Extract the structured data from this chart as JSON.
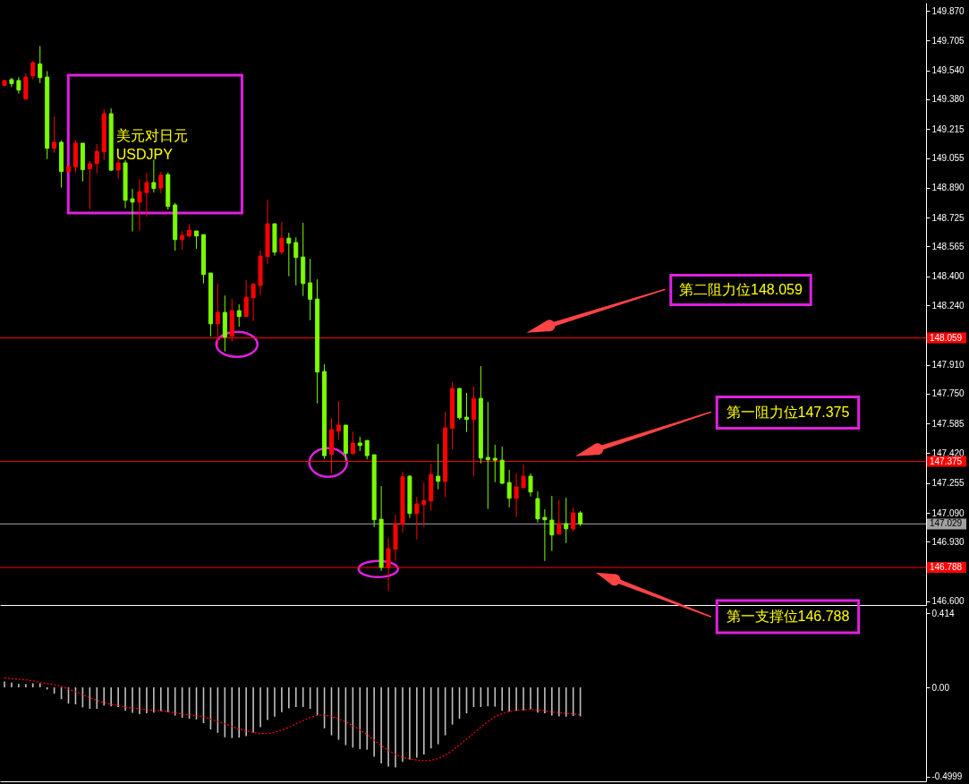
{
  "chart_data": [
    {
      "type": "candlestick",
      "categories": [
        null,
        null,
        null,
        null,
        null,
        null,
        null,
        null,
        null,
        null,
        null,
        null,
        null,
        null,
        null,
        null,
        null,
        null,
        null,
        null,
        null,
        null,
        null,
        null,
        null,
        null,
        null,
        null,
        null,
        null,
        null,
        null,
        null,
        null,
        null,
        null,
        null,
        null,
        null,
        null,
        null,
        null,
        null,
        null,
        null,
        null,
        null,
        null,
        null,
        null,
        null,
        null,
        null,
        null,
        null,
        null,
        null,
        null,
        null,
        null,
        null,
        null,
        null,
        null,
        null,
        null,
        null,
        null,
        null,
        null,
        null,
        null,
        null,
        null,
        null,
        null,
        null,
        null,
        null,
        null,
        null,
        null,
        null,
        null,
        null,
        null,
        null,
        null,
        null,
        null,
        null,
        null,
        null,
        null,
        null,
        null,
        null,
        null,
        null,
        null,
        null,
        null,
        null,
        null,
        null,
        null,
        null,
        null,
        null,
        null,
        null,
        null,
        null,
        null,
        null,
        null,
        null,
        null,
        null,
        null,
        null,
        null,
        null,
        null,
        null,
        null,
        null,
        null,
        null,
        null
      ],
      "ohlc": [
        [
          149.457,
          149.487,
          149.451,
          149.484
        ],
        [
          149.489,
          149.5,
          149.447,
          149.467
        ],
        [
          149.484,
          149.503,
          149.411,
          149.431
        ],
        [
          149.381,
          149.523,
          149.381,
          149.503
        ],
        [
          149.51,
          149.593,
          149.49,
          149.583
        ],
        [
          149.576,
          149.675,
          149.47,
          149.5
        ],
        [
          149.503,
          149.536,
          149.049,
          149.109
        ],
        [
          149.109,
          149.285,
          149.084,
          149.142
        ],
        [
          149.142,
          149.153,
          148.891,
          148.98
        ],
        [
          148.98,
          149.011,
          148.978,
          149.008
        ],
        [
          149.005,
          149.153,
          148.975,
          149.137
        ],
        [
          149.137,
          149.137,
          148.925,
          148.99
        ],
        [
          148.995,
          149.038,
          148.772,
          149.023
        ],
        [
          149.024,
          149.132,
          148.97,
          149.092
        ],
        [
          149.089,
          149.325,
          149.044,
          149.3
        ],
        [
          149.3,
          149.33,
          148.983,
          148.988
        ],
        [
          148.988,
          149.049,
          148.94,
          149.028
        ],
        [
          149.028,
          149.044,
          148.777,
          148.821
        ],
        [
          148.829,
          148.884,
          148.648,
          148.811
        ],
        [
          148.811,
          148.938,
          148.653,
          148.869
        ],
        [
          148.864,
          148.973,
          148.732,
          148.919
        ],
        [
          148.919,
          149.046,
          148.864,
          148.886
        ],
        [
          148.889,
          148.978,
          148.859,
          148.96
        ],
        [
          148.963,
          148.975,
          148.77,
          148.787
        ],
        [
          148.795,
          148.806,
          148.542,
          148.603
        ],
        [
          148.603,
          148.651,
          148.549,
          148.626
        ],
        [
          148.623,
          148.691,
          148.615,
          148.656
        ],
        [
          148.651,
          148.651,
          148.552,
          148.623
        ],
        [
          148.631,
          148.631,
          148.36,
          148.41
        ],
        [
          148.418,
          148.418,
          148.068,
          148.137
        ],
        [
          148.137,
          148.359,
          148.018,
          148.2
        ],
        [
          148.2,
          148.294,
          147.984,
          148.063
        ],
        [
          148.068,
          148.274,
          148.038,
          148.21
        ],
        [
          148.21,
          148.245,
          148.121,
          148.177
        ],
        [
          148.177,
          148.378,
          148.177,
          148.284
        ],
        [
          148.281,
          148.364,
          148.152,
          148.355
        ],
        [
          148.349,
          148.542,
          148.296,
          148.512
        ],
        [
          148.509,
          148.824,
          148.469,
          148.691
        ],
        [
          148.691,
          148.691,
          148.514,
          148.534
        ],
        [
          148.534,
          148.7,
          148.519,
          148.611
        ],
        [
          148.611,
          148.641,
          148.4,
          148.583
        ],
        [
          148.587,
          148.616,
          148.35,
          148.504
        ],
        [
          148.507,
          148.696,
          148.291,
          148.36
        ],
        [
          148.364,
          148.497,
          148.157,
          148.273
        ],
        [
          148.274,
          148.383,
          147.696,
          147.87
        ],
        [
          147.873,
          147.913,
          147.389,
          147.407
        ],
        [
          147.414,
          147.615,
          147.311,
          147.551
        ],
        [
          147.543,
          147.709,
          147.496,
          147.576
        ],
        [
          147.576,
          147.576,
          147.382,
          147.419
        ],
        [
          147.419,
          147.541,
          147.414,
          147.477
        ],
        [
          147.477,
          147.511,
          147.432,
          147.463
        ],
        [
          147.491,
          147.491,
          147.387,
          147.407
        ],
        [
          147.412,
          147.412,
          147.011,
          147.052
        ],
        [
          147.055,
          147.239,
          146.768,
          146.788
        ],
        [
          146.788,
          146.951,
          146.659,
          146.892
        ],
        [
          146.889,
          147.08,
          146.824,
          147.031
        ],
        [
          147.026,
          147.318,
          146.981,
          147.29
        ],
        [
          147.293,
          147.298,
          147.062,
          147.087
        ],
        [
          147.087,
          147.179,
          146.943,
          147.14
        ],
        [
          147.136,
          147.258,
          147.012,
          147.159
        ],
        [
          147.156,
          147.363,
          147.102,
          147.303
        ],
        [
          147.293,
          147.472,
          147.221,
          147.265
        ],
        [
          147.264,
          147.65,
          147.176,
          147.561
        ],
        [
          147.558,
          147.814,
          147.442,
          147.779
        ],
        [
          147.779,
          147.779,
          147.607,
          147.617
        ],
        [
          147.62,
          147.754,
          147.538,
          147.607
        ],
        [
          147.607,
          147.789,
          147.293,
          147.724
        ],
        [
          147.724,
          147.903,
          147.364,
          147.394
        ],
        [
          147.397,
          147.705,
          147.112,
          147.384
        ],
        [
          147.392,
          147.467,
          147.26,
          147.382
        ],
        [
          147.382,
          147.457,
          147.25,
          147.254
        ],
        [
          147.258,
          147.328,
          147.121,
          147.171
        ],
        [
          147.171,
          147.308,
          147.067,
          147.234
        ],
        [
          147.23,
          147.358,
          147.226,
          147.293
        ],
        [
          147.293,
          147.308,
          147.181,
          147.206
        ],
        [
          147.169,
          147.209,
          147.037,
          147.057
        ],
        [
          147.065,
          147.11,
          146.824,
          147.052
        ],
        [
          147.05,
          147.184,
          146.879,
          146.968
        ],
        [
          146.973,
          147.164,
          146.973,
          147.031
        ],
        [
          147.031,
          147.174,
          146.923,
          147.002
        ],
        [
          147.002,
          147.12,
          146.988,
          147.09
        ],
        [
          147.09,
          147.1,
          147.017,
          147.029
        ],
        null,
        null,
        null,
        null,
        null,
        null,
        null,
        null,
        null,
        null,
        null,
        null,
        null,
        null,
        null,
        null,
        null,
        null,
        null,
        null,
        null,
        null,
        null,
        null,
        null,
        null,
        null,
        null,
        null,
        null,
        null,
        null,
        null,
        null,
        null,
        null,
        null,
        null,
        null,
        null,
        null,
        null,
        null,
        null,
        null,
        null,
        null,
        null
      ],
      "colors": [
        "#ff0000",
        "#7cfc00",
        "#7cfc00",
        "#ff0000",
        "#ff0000",
        "#7cfc00",
        "#7cfc00",
        "#ff0000",
        "#7cfc00",
        "#ff0000",
        "#ff0000",
        "#7cfc00",
        "#ff0000",
        "#ff0000",
        "#ff0000",
        "#7cfc00",
        "#ff0000",
        "#7cfc00",
        "#7cfc00",
        "#ff0000",
        "#ff0000",
        "#7cfc00",
        "#ff0000",
        "#7cfc00",
        "#7cfc00",
        "#ff0000",
        "#ff0000",
        "#7cfc00",
        "#7cfc00",
        "#7cfc00",
        "#ff0000",
        "#7cfc00",
        "#ff0000",
        "#7cfc00",
        "#ff0000",
        "#ff0000",
        "#ff0000",
        "#ff0000",
        "#7cfc00",
        "#ff0000",
        "#7cfc00",
        "#7cfc00",
        "#7cfc00",
        "#7cfc00",
        "#7cfc00",
        "#7cfc00",
        "#ff0000",
        "#ff0000",
        "#7cfc00",
        "#ff0000",
        "#7cfc00",
        "#7cfc00",
        "#7cfc00",
        "#7cfc00",
        "#ff0000",
        "#ff0000",
        "#ff0000",
        "#7cfc00",
        "#ff0000",
        "#ff0000",
        "#ff0000",
        "#7cfc00",
        "#ff0000",
        "#ff0000",
        "#7cfc00",
        "#7cfc00",
        "#ff0000",
        "#7cfc00",
        "#7cfc00",
        "#7cfc00",
        "#7cfc00",
        "#7cfc00",
        "#ff0000",
        "#ff0000",
        "#7cfc00",
        "#7cfc00",
        "#7cfc00",
        "#7cfc00",
        "#ff0000",
        "#7cfc00",
        "#ff0000",
        "#7cfc00",
        null,
        null,
        null,
        null,
        null,
        null,
        null,
        null,
        null,
        null,
        null,
        null,
        null,
        null,
        null,
        null,
        null,
        null,
        null,
        null,
        null,
        null,
        null,
        null,
        null,
        null,
        null,
        null,
        null,
        null,
        null,
        null,
        null,
        null,
        null,
        null,
        null,
        null,
        null,
        null,
        null,
        null,
        null,
        null,
        null,
        null,
        null,
        null
      ],
      "ylim": [
        146.58,
        149.915
      ],
      "yticks": [
        {
          "value": 149.87,
          "label": "149.870"
        },
        149.705,
        {
          "value": 149.54,
          "label": "149.540"
        },
        {
          "value": 149.38,
          "label": "149.380"
        },
        149.215,
        149.055,
        {
          "value": 148.89,
          "label": "148.890"
        },
        148.725,
        148.565,
        {
          "value": 148.4,
          "label": "148.400"
        },
        {
          "value": 148.24,
          "label": "148.240"
        },
        {
          "value": 147.91,
          "label": "147.910"
        },
        {
          "value": 147.75,
          "label": "147.750"
        },
        147.585,
        {
          "value": 147.42,
          "label": "147.420"
        },
        147.255,
        {
          "value": 147.09,
          "label": "147.090"
        },
        {
          "value": 146.93,
          "label": "146.930"
        },
        {
          "value": 146.6,
          "label": "146.600"
        }
      ],
      "tick_labels": "y",
      "ref_lines": [
        {
          "axis": "y",
          "value": 148.059,
          "label": "148.059",
          "color": "#ff0000"
        },
        {
          "axis": "y",
          "value": 147.375,
          "label": "147.375",
          "color": "#ff0000"
        },
        {
          "axis": "y",
          "value": 147.029,
          "label": "147.029",
          "color": "#a0a0a0"
        },
        {
          "axis": "y",
          "value": 146.788,
          "label": "146.788",
          "color": "#ff0000"
        }
      ],
      "annotations": [
        "美元对日元",
        "USDJPY",
        {
          "text": "第二阻力位148.059",
          "y": 148.059
        },
        {
          "text": "第一阻力位147.375",
          "y": 147.375
        },
        {
          "text": "第一支撑位146.788",
          "y": 146.788
        }
      ]
    },
    {
      "type": "bar",
      "categories": [
        null,
        null,
        null,
        null,
        null,
        null,
        null,
        null,
        null,
        null,
        null,
        null,
        null,
        null,
        null,
        null,
        null,
        null,
        null,
        null,
        null,
        null,
        null,
        null,
        null,
        null,
        null,
        null,
        null,
        null,
        null,
        null,
        null,
        null,
        null,
        null,
        null,
        null,
        null,
        null,
        null,
        null,
        null,
        null,
        null,
        null,
        null,
        null,
        null,
        null,
        null,
        null,
        null,
        null,
        null,
        null,
        null,
        null,
        null,
        null,
        null,
        null,
        null,
        null,
        null,
        null,
        null,
        null,
        null,
        null,
        null,
        null,
        null,
        null,
        null,
        null,
        null,
        null,
        null,
        null,
        null,
        null,
        null,
        null,
        null,
        null,
        null,
        null,
        null,
        null,
        null,
        null,
        null,
        null,
        null,
        null,
        null,
        null,
        null,
        null,
        null,
        null,
        null,
        null,
        null,
        null,
        null,
        null,
        null,
        null,
        null,
        null,
        null,
        null,
        null,
        null,
        null,
        null,
        null,
        null,
        null,
        null,
        null,
        null,
        null,
        null,
        null,
        null,
        null,
        null
      ],
      "series": [
        {
          "color": "#c0c0c0",
          "values": [
            0.032,
            0.028,
            0.019,
            0.019,
            0.023,
            0.023,
            -0.012,
            -0.035,
            -0.066,
            -0.091,
            -0.095,
            -0.112,
            -0.12,
            -0.12,
            -0.102,
            -0.106,
            -0.11,
            -0.131,
            -0.143,
            -0.15,
            -0.145,
            -0.141,
            -0.133,
            -0.139,
            -0.158,
            -0.17,
            -0.175,
            -0.179,
            -0.2,
            -0.235,
            -0.254,
            -0.279,
            -0.283,
            -0.281,
            -0.273,
            -0.252,
            -0.223,
            -0.183,
            -0.164,
            -0.139,
            -0.118,
            -0.11,
            -0.11,
            -0.12,
            -0.156,
            -0.229,
            -0.268,
            -0.293,
            -0.323,
            -0.337,
            -0.345,
            -0.348,
            -0.387,
            -0.425,
            -0.443,
            -0.448,
            -0.416,
            -0.404,
            -0.393,
            -0.375,
            -0.341,
            -0.318,
            -0.268,
            -0.208,
            -0.175,
            -0.145,
            -0.11,
            -0.11,
            -0.106,
            -0.108,
            -0.131,
            -0.135,
            -0.131,
            -0.129,
            -0.123,
            -0.141,
            -0.145,
            -0.158,
            -0.162,
            -0.164,
            -0.16,
            -0.162,
            null,
            null,
            null,
            null,
            null,
            null,
            null,
            null,
            null,
            null,
            null,
            null,
            null,
            null,
            null,
            null,
            null,
            null,
            null,
            null,
            null,
            null,
            null,
            null,
            null,
            null,
            null,
            null,
            null,
            null,
            null,
            null,
            null,
            null,
            null,
            null,
            null,
            null,
            null,
            null,
            null,
            null,
            null,
            null,
            null,
            null,
            null,
            null
          ]
        },
        {
          "type": "line",
          "color": "#ff0000",
          "values": [
            0.053,
            0.048,
            0.046,
            0.042,
            0.036,
            0.027,
            0.021,
            0.015,
            0.007,
            -0.01,
            -0.025,
            -0.041,
            -0.058,
            -0.073,
            -0.085,
            -0.095,
            -0.102,
            -0.11,
            -0.116,
            -0.12,
            -0.125,
            -0.129,
            -0.131,
            -0.135,
            -0.143,
            -0.15,
            -0.154,
            -0.158,
            -0.164,
            -0.177,
            -0.191,
            -0.204,
            -0.218,
            -0.233,
            -0.243,
            -0.252,
            -0.258,
            -0.258,
            -0.252,
            -0.239,
            -0.223,
            -0.204,
            -0.185,
            -0.168,
            -0.156,
            -0.154,
            -0.162,
            -0.177,
            -0.193,
            -0.214,
            -0.237,
            -0.264,
            -0.295,
            -0.325,
            -0.352,
            -0.375,
            -0.391,
            -0.4,
            -0.406,
            -0.41,
            -0.408,
            -0.398,
            -0.379,
            -0.352,
            -0.323,
            -0.289,
            -0.256,
            -0.223,
            -0.191,
            -0.164,
            -0.148,
            -0.135,
            -0.129,
            -0.125,
            -0.123,
            -0.127,
            -0.131,
            -0.137,
            -0.141,
            -0.145,
            -0.148,
            -0.154,
            null,
            null,
            null,
            null,
            null,
            null,
            null,
            null,
            null,
            null,
            null,
            null,
            null,
            null,
            null,
            null,
            null,
            null,
            null,
            null,
            null,
            null,
            null,
            null,
            null,
            null,
            null,
            null,
            null,
            null,
            null,
            null,
            null,
            null,
            null,
            null,
            null,
            null,
            null,
            null,
            null,
            null,
            null,
            null,
            null,
            null,
            null,
            null
          ]
        }
      ],
      "ylim": [
        -0.525,
        0.445
      ],
      "yticks": [
        0.414,
        {
          "value": 0,
          "label": "0.00"
        },
        -0.4999
      ],
      "tick_labels": "y",
      "line_style": "dotted"
    }
  ]
}
